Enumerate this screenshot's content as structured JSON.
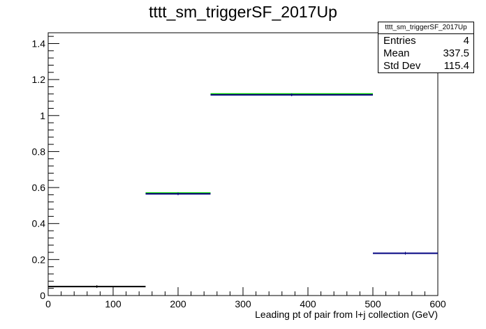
{
  "chart_data": {
    "type": "histogram",
    "title": "tttt_sm_triggerSF_2017Up",
    "xlabel": "Leading pt of pair from l+j collection (GeV)",
    "ylabel": "",
    "xlim": [
      0,
      600
    ],
    "ylim": [
      0,
      1.46
    ],
    "x_ticks": [
      "0",
      "100",
      "200",
      "300",
      "400",
      "500",
      "600"
    ],
    "y_ticks": [
      "0",
      "0.2",
      "0.4",
      "0.6",
      "0.8",
      "1",
      "1.2",
      "1.4"
    ],
    "bins": [
      {
        "x_low": 0,
        "x_high": 150,
        "value": 0.05,
        "color": "#000000"
      },
      {
        "x_low": 150,
        "x_high": 250,
        "value": 0.565,
        "color": "#000080"
      },
      {
        "x_low": 250,
        "x_high": 500,
        "value": 1.115,
        "color": "#000080"
      },
      {
        "x_low": 500,
        "x_high": 600,
        "value": 0.235,
        "color": "#000080"
      }
    ],
    "overlay": [
      {
        "x_low": 150,
        "x_high": 250,
        "value": 0.57,
        "color": "#00cc00"
      },
      {
        "x_low": 250,
        "x_high": 500,
        "value": 1.12,
        "color": "#00cc00"
      }
    ],
    "grid": false,
    "legend": "top-right"
  },
  "stats_box": {
    "name": "tttt_sm_triggerSF_2017Up",
    "rows": [
      {
        "label": "Entries",
        "value": "4"
      },
      {
        "label": "Mean",
        "value": "337.5"
      },
      {
        "label": "Std Dev",
        "value": "115.4"
      }
    ]
  }
}
